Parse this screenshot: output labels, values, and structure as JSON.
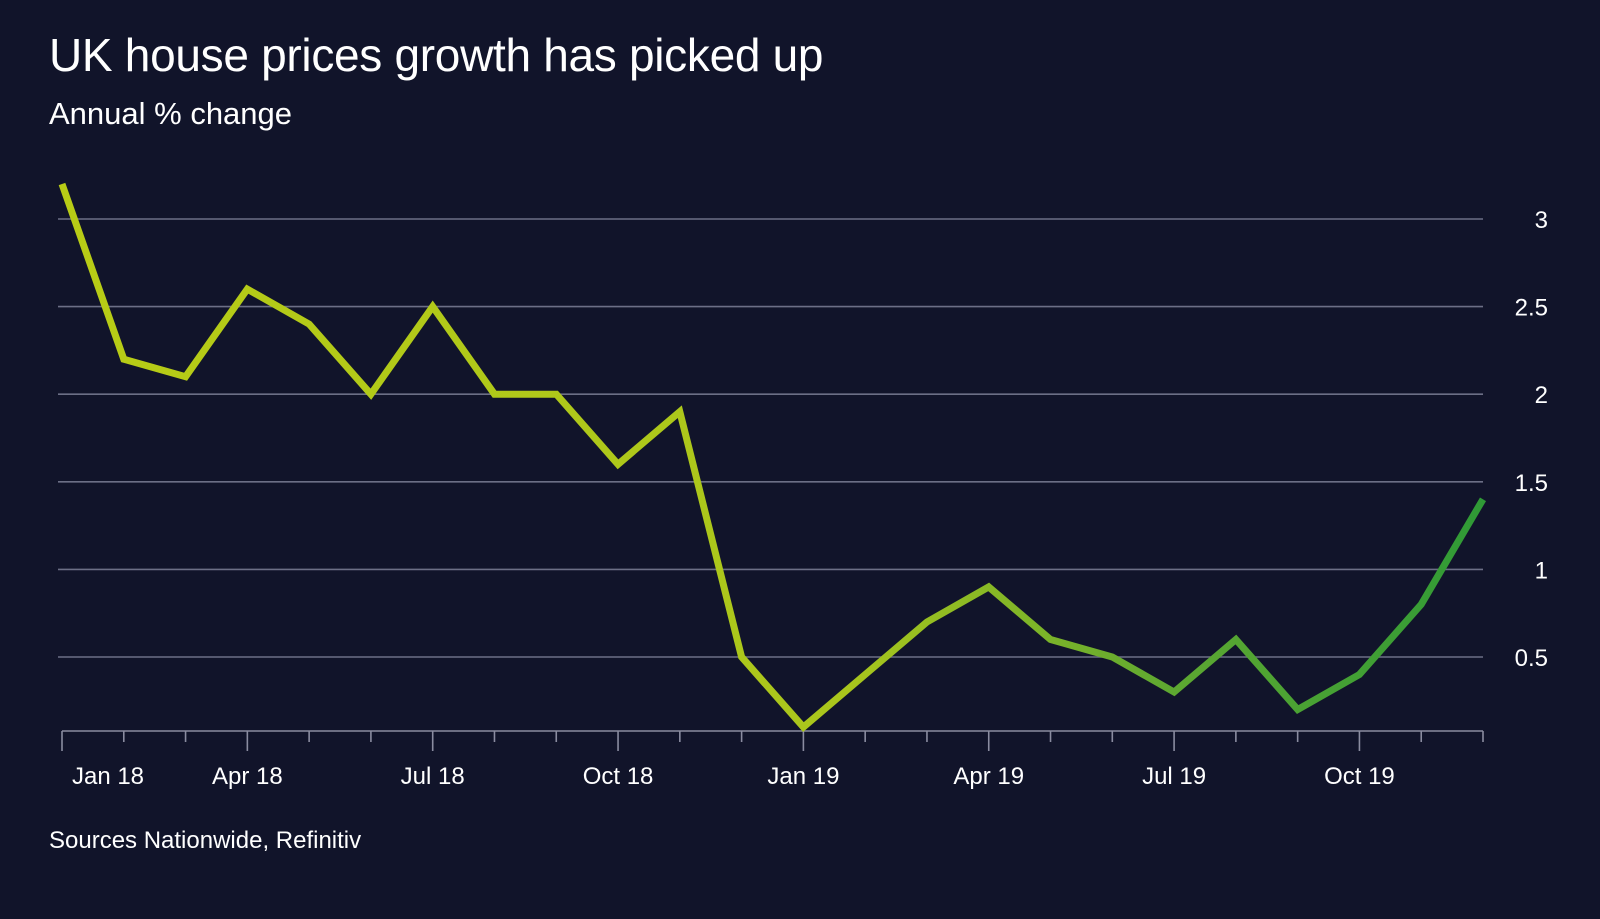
{
  "chart_data": {
    "type": "line",
    "title": "UK house prices growth has picked up",
    "subtitle": "Annual % change",
    "source": "Sources Nationwide, Refinitiv",
    "x": [
      "Jan 18",
      "Feb 18",
      "Mar 18",
      "Apr 18",
      "May 18",
      "Jun 18",
      "Jul 18",
      "Aug 18",
      "Sep 18",
      "Oct 18",
      "Nov 18",
      "Dec 18",
      "Jan 19",
      "Feb 19",
      "Mar 19",
      "Apr 19",
      "May 19",
      "Jun 19",
      "Jul 19",
      "Aug 19",
      "Sep 19",
      "Oct 19",
      "Nov 19",
      "Dec 19"
    ],
    "values": [
      3.2,
      2.2,
      2.1,
      2.6,
      2.4,
      2.0,
      2.5,
      2.0,
      2.0,
      1.6,
      1.9,
      0.5,
      0.1,
      0.4,
      0.7,
      0.9,
      0.6,
      0.5,
      0.3,
      0.6,
      0.2,
      0.4,
      0.8,
      1.4
    ],
    "xtick_labels": [
      {
        "index": 0,
        "label": "Jan 18"
      },
      {
        "index": 3,
        "label": "Apr 18"
      },
      {
        "index": 6,
        "label": "Jul 18"
      },
      {
        "index": 9,
        "label": "Oct 18"
      },
      {
        "index": 12,
        "label": "Jan 19"
      },
      {
        "index": 15,
        "label": "Apr 19"
      },
      {
        "index": 18,
        "label": "Jul 19"
      },
      {
        "index": 21,
        "label": "Oct 19"
      }
    ],
    "yticks": [
      0.5,
      1,
      1.5,
      2,
      2.5,
      3
    ],
    "ytick_labels": [
      "0.5",
      "1",
      "1.5",
      "2",
      "2.5",
      "3"
    ],
    "y_axis_side": "right",
    "grid": true,
    "line_colors": [
      "#b8cc16",
      "#2f9a36"
    ],
    "background": "#11142a"
  }
}
